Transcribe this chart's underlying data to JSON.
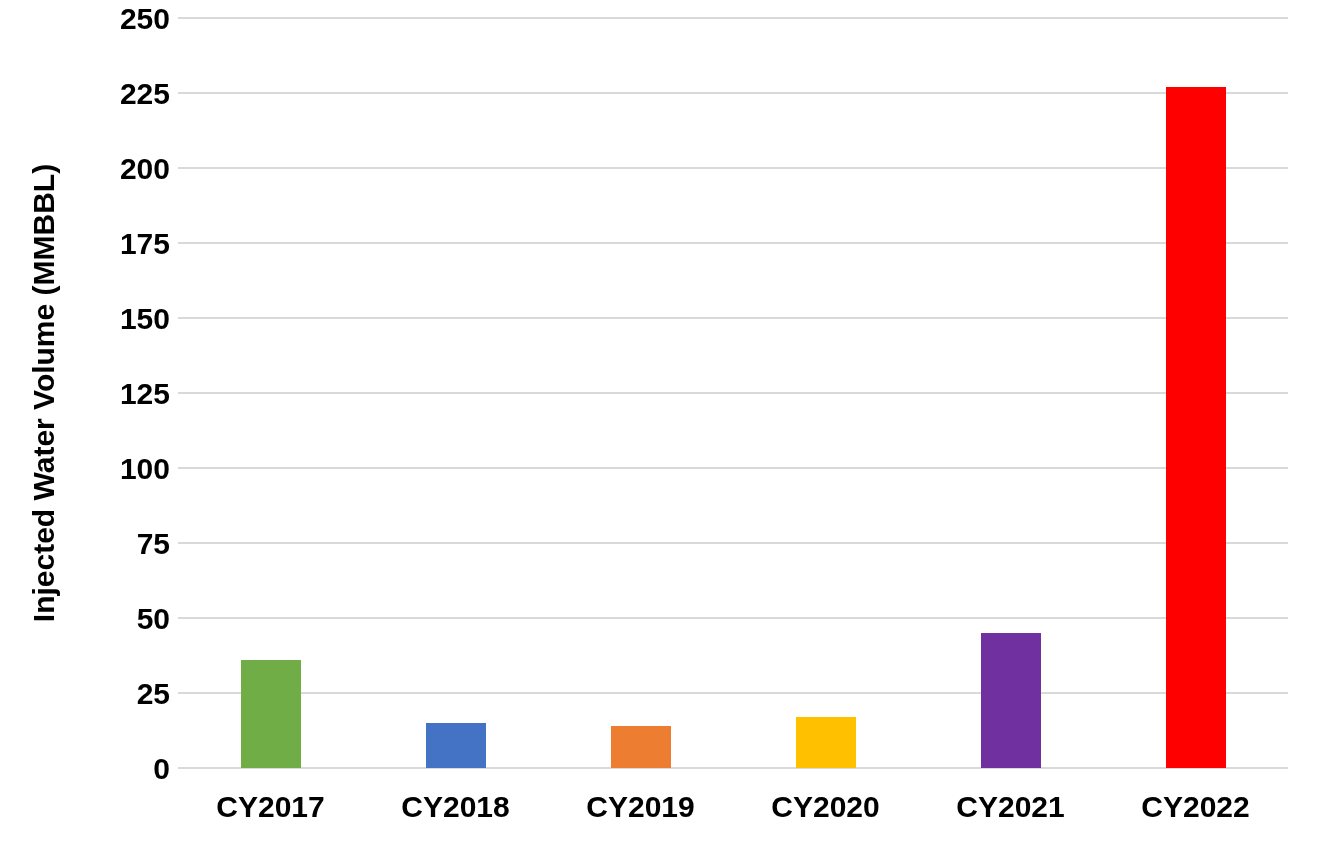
{
  "chart_data": {
    "type": "bar",
    "ylabel": "Injected Water Volume (MMBBL)",
    "categories": [
      "CY2017",
      "CY2018",
      "CY2019",
      "CY2020",
      "CY2021",
      "CY2022"
    ],
    "values": [
      36,
      15,
      14,
      17,
      45,
      227
    ],
    "colors": [
      "#70ad47",
      "#4472c4",
      "#ed7d31",
      "#ffc000",
      "#7030a0",
      "#ff0000"
    ],
    "ylim": [
      0,
      250
    ],
    "yticks": [
      0,
      25,
      50,
      75,
      100,
      125,
      150,
      175,
      200,
      225,
      250
    ],
    "grid": "y"
  }
}
